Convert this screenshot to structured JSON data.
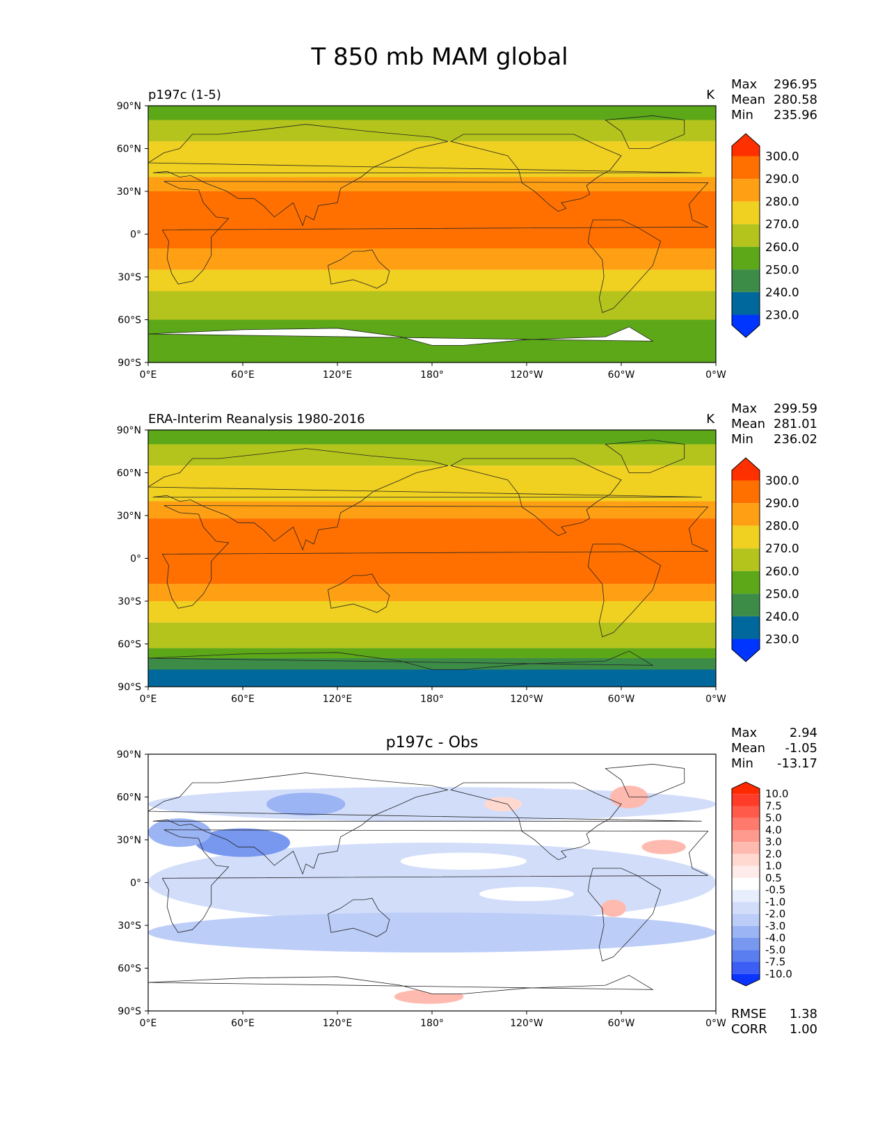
{
  "figure": {
    "title": "T 850 mb MAM global"
  },
  "chart_data": [
    {
      "type": "heatmap",
      "id": "test",
      "title_left": "p197c (1-5)",
      "title_center": "",
      "units": "K",
      "x_ticks": [
        "0°E",
        "60°E",
        "120°E",
        "180°",
        "120°W",
        "60°W",
        "0°W"
      ],
      "y_ticks": [
        "90°N",
        "60°N",
        "30°N",
        "0°",
        "30°S",
        "60°S",
        "90°S"
      ],
      "xlim": [
        0,
        360
      ],
      "ylim": [
        -90,
        90
      ],
      "stats": [
        {
          "label": "Max",
          "value": "296.95"
        },
        {
          "label": "Mean",
          "value": "280.58"
        },
        {
          "label": "Min",
          "value": "235.96"
        }
      ],
      "colorbar": {
        "levels": [
          "300.0",
          "290.0",
          "280.0",
          "270.0",
          "260.0",
          "250.0",
          "240.0",
          "230.0"
        ],
        "colors": [
          "#ff3000",
          "#ff7000",
          "#ffa014",
          "#f0d020",
          "#b4c41c",
          "#5ca818",
          "#3c8c48",
          "#00689c",
          "#0035ff"
        ]
      },
      "field": {
        "kind": "temperature",
        "bands_from_north": [
          {
            "lat": 90,
            "color": "#5ca818"
          },
          {
            "lat": 80,
            "color": "#b4c41c"
          },
          {
            "lat": 65,
            "color": "#f0d020"
          },
          {
            "lat": 40,
            "color": "#ffa014"
          },
          {
            "lat": 30,
            "color": "#ff7000"
          },
          {
            "lat": -10,
            "color": "#ffa014"
          },
          {
            "lat": -25,
            "color": "#f0d020"
          },
          {
            "lat": -40,
            "color": "#b4c41c"
          },
          {
            "lat": -60,
            "color": "#5ca818"
          }
        ],
        "antarctica": "missing"
      }
    },
    {
      "type": "heatmap",
      "id": "reference",
      "title_left": "ERA-Interim Reanalysis 1980-2016",
      "title_center": "",
      "units": "K",
      "x_ticks": [
        "0°E",
        "60°E",
        "120°E",
        "180°",
        "120°W",
        "60°W",
        "0°W"
      ],
      "y_ticks": [
        "90°N",
        "60°N",
        "30°N",
        "0°",
        "30°S",
        "60°S",
        "90°S"
      ],
      "xlim": [
        0,
        360
      ],
      "ylim": [
        -90,
        90
      ],
      "stats": [
        {
          "label": "Max",
          "value": "299.59"
        },
        {
          "label": "Mean",
          "value": "281.01"
        },
        {
          "label": "Min",
          "value": "236.02"
        }
      ],
      "colorbar": {
        "levels": [
          "300.0",
          "290.0",
          "280.0",
          "270.0",
          "260.0",
          "250.0",
          "240.0",
          "230.0"
        ],
        "colors": [
          "#ff3000",
          "#ff7000",
          "#ffa014",
          "#f0d020",
          "#b4c41c",
          "#5ca818",
          "#3c8c48",
          "#00689c",
          "#0035ff"
        ]
      },
      "field": {
        "kind": "temperature",
        "bands_from_north": [
          {
            "lat": 90,
            "color": "#5ca818"
          },
          {
            "lat": 80,
            "color": "#b4c41c"
          },
          {
            "lat": 65,
            "color": "#f0d020"
          },
          {
            "lat": 40,
            "color": "#ffa014"
          },
          {
            "lat": 28,
            "color": "#ff7000"
          },
          {
            "lat": -18,
            "color": "#ffa014"
          },
          {
            "lat": -30,
            "color": "#f0d020"
          },
          {
            "lat": -45,
            "color": "#b4c41c"
          },
          {
            "lat": -63,
            "color": "#5ca818"
          },
          {
            "lat": -70,
            "color": "#3c8c48"
          }
        ],
        "antarctica": "cold"
      }
    },
    {
      "type": "heatmap",
      "id": "difference",
      "title_left": "",
      "title_center": "p197c - Obs",
      "units": "",
      "x_ticks": [
        "0°E",
        "60°E",
        "120°E",
        "180°",
        "120°W",
        "60°W",
        "0°W"
      ],
      "y_ticks": [
        "90°N",
        "60°N",
        "30°N",
        "0°",
        "30°S",
        "60°S",
        "90°S"
      ],
      "xlim": [
        0,
        360
      ],
      "ylim": [
        -90,
        90
      ],
      "stats": [
        {
          "label": "Max",
          "value": "2.94"
        },
        {
          "label": "Mean",
          "value": "-1.05"
        },
        {
          "label": "Min",
          "value": "-13.17"
        }
      ],
      "extra_stats": [
        {
          "label": "RMSE",
          "value": "1.38"
        },
        {
          "label": "CORR",
          "value": "1.00"
        }
      ],
      "colorbar": {
        "levels": [
          "10.0",
          "7.5",
          "5.0",
          "4.0",
          "3.0",
          "2.0",
          "1.0",
          "0.5",
          "-0.5",
          "-1.0",
          "-2.0",
          "-3.0",
          "-4.0",
          "-5.0",
          "-7.5",
          "-10.0"
        ],
        "colors": [
          "#ff2a00",
          "#ff3c28",
          "#ff5a4a",
          "#ff7a6c",
          "#ff9a8e",
          "#ffbab0",
          "#ffd8d0",
          "#ffecea",
          "#ffffff",
          "#e8eefc",
          "#d2ddfa",
          "#bccdf8",
          "#9ab4f4",
          "#7898f0",
          "#5a7ef0",
          "#3c5ef4",
          "#0b35ff"
        ]
      },
      "field": {
        "kind": "difference"
      }
    }
  ]
}
